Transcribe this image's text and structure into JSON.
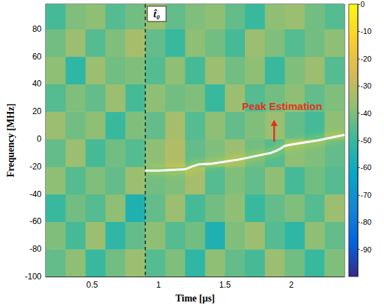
{
  "chart_data": {
    "type": "heatmap",
    "xlabel": "Time [μs]",
    "ylabel": "Frequency [MHz]",
    "xlim": [
      0.15,
      2.4
    ],
    "xticks": [
      0.5,
      1,
      1.5,
      2
    ],
    "ylim": [
      -100,
      98
    ],
    "yticks": [
      -100,
      -80,
      -60,
      -40,
      -20,
      0,
      20,
      40,
      60,
      80
    ],
    "grid": false,
    "cells": {
      "x_edges": [
        0.15,
        0.3,
        0.45,
        0.6,
        0.75,
        0.9,
        1.05,
        1.2,
        1.35,
        1.5,
        1.65,
        1.8,
        1.95,
        2.1,
        2.25,
        2.4
      ],
      "y_edges": [
        -100,
        -80,
        -60,
        -40,
        -20,
        0,
        20,
        40,
        60,
        80,
        98
      ],
      "values": [
        [
          -44,
          -38,
          -50,
          -42,
          -36,
          -46,
          -40,
          -52,
          -38,
          -44,
          -48,
          -36,
          -42,
          -50,
          -40
        ],
        [
          -40,
          -48,
          -36,
          -52,
          -44,
          -38,
          -46,
          -42,
          -56,
          -40,
          -36,
          -46,
          -52,
          -38,
          -44
        ],
        [
          -50,
          -42,
          -46,
          -38,
          -56,
          -44,
          -36,
          -48,
          -42,
          -38,
          -50,
          -44,
          -40,
          -46,
          -36
        ],
        [
          -38,
          -46,
          -40,
          -44,
          -36,
          -42,
          -40,
          -34,
          -46,
          -40,
          -44,
          -38,
          -48,
          -42,
          -46
        ],
        [
          -44,
          -36,
          -48,
          -42,
          -46,
          -38,
          -32,
          -44,
          -40,
          -36,
          -42,
          -46,
          -38,
          -40,
          -44
        ],
        [
          -36,
          -42,
          -38,
          -50,
          -40,
          -44,
          -34,
          -46,
          -38,
          -44,
          -40,
          -36,
          -44,
          -48,
          -38
        ],
        [
          -46,
          -40,
          -44,
          -36,
          -48,
          -38,
          -42,
          -40,
          -50,
          -36,
          -46,
          -42,
          -38,
          -44,
          -40
        ],
        [
          -38,
          -52,
          -36,
          -42,
          -40,
          -46,
          -38,
          -48,
          -36,
          -42,
          -38,
          -50,
          -40,
          -36,
          -46
        ],
        [
          -42,
          -36,
          -46,
          -40,
          -34,
          -44,
          -50,
          -38,
          -42,
          -48,
          -36,
          -40,
          -46,
          -42,
          -38
        ],
        [
          -48,
          -40,
          -38,
          -46,
          -42,
          -36,
          -44,
          -40,
          -38,
          -44,
          -50,
          -38,
          -36,
          -42,
          -46
        ]
      ]
    },
    "colorbar": {
      "range": [
        -100,
        0
      ],
      "ticks": [
        0,
        -10,
        -20,
        -30,
        -40,
        -50,
        -60,
        -70,
        -80,
        -90
      ],
      "colors": [
        "#352a87",
        "#0363e1",
        "#1485d4",
        "#06a7c6",
        "#38b99e",
        "#92bf73",
        "#d9ba56",
        "#fcce2e",
        "#f9fb0e"
      ]
    },
    "series": [
      {
        "type": "line",
        "color": "#ffffff",
        "x": [
          0.9,
          1.0,
          1.1,
          1.2,
          1.25,
          1.3,
          1.4,
          1.5,
          1.6,
          1.7,
          1.8,
          1.85,
          1.9,
          1.95,
          2.0,
          2.1,
          2.2,
          2.3,
          2.4
        ],
        "values": [
          -23,
          -23,
          -22.5,
          -22,
          -20,
          -18.5,
          -18,
          -16.5,
          -15,
          -13,
          -11,
          -10,
          -8,
          -5,
          -4,
          -2.5,
          -1,
          1,
          3
        ]
      }
    ],
    "annotations": [
      {
        "type": "vline",
        "x": 0.9,
        "label": "t̂₀",
        "color": "#000000",
        "line_style": "dashed"
      },
      {
        "type": "text",
        "text": "Peak Estimation",
        "x": 1.93,
        "y": 24,
        "color": "#e0321e",
        "arrow": {
          "from": [
            1.87,
            -2
          ],
          "to": [
            1.87,
            14
          ]
        }
      }
    ]
  }
}
